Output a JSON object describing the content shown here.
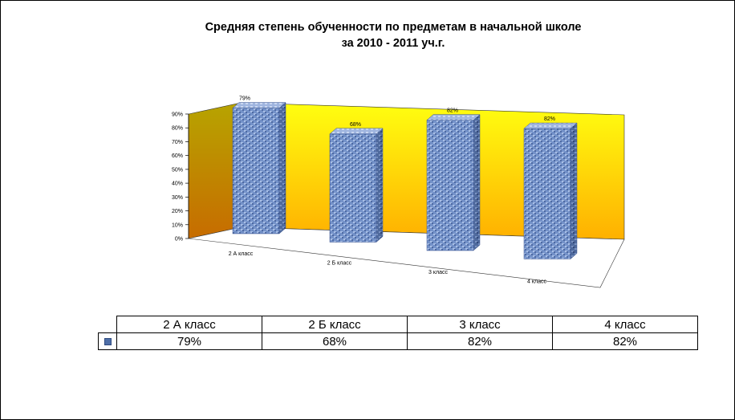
{
  "chart_data": {
    "type": "bar",
    "title_line1": "Средняя степень обученности по предметам в начальной школе",
    "title_line2": "за 2010  - 2011 уч.г.",
    "categories": [
      "2 А класс",
      "2 Б класс",
      "3 класс",
      "4 класс"
    ],
    "values": [
      79,
      68,
      82,
      82
    ],
    "value_labels": [
      "79%",
      "68%",
      "82%",
      "82%"
    ],
    "y_ticks": [
      "0%",
      "10%",
      "20%",
      "30%",
      "40%",
      "50%",
      "60%",
      "70%",
      "80%",
      "90%"
    ],
    "ylim": [
      0,
      90
    ],
    "style": "3d-column",
    "colors": {
      "bar": "#6f8fc8",
      "wall_left": "#d0a000",
      "wall_right": "#ffee00"
    }
  },
  "table": {
    "headers": [
      "2 А класс",
      "2 Б класс",
      "3 класс",
      "4 класс"
    ],
    "values": [
      "79%",
      "68%",
      "82%",
      "82%"
    ]
  }
}
